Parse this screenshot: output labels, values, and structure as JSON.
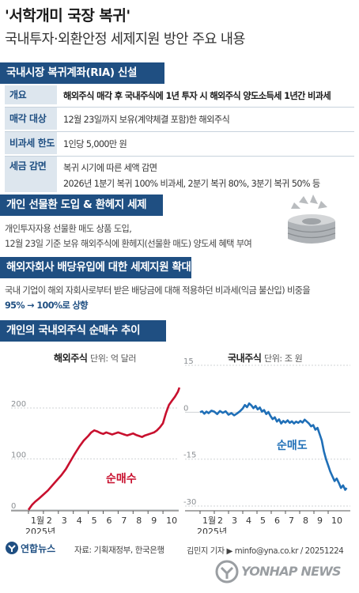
{
  "header": {
    "title": "'서학개미 국장 복귀'",
    "subtitle": "국내투자·외환안정 세제지원 방안 주요 내용"
  },
  "section1": {
    "heading": "국내시장 복귀계좌(RIA) 신설",
    "rows": [
      {
        "label": "개요",
        "lines": [
          "해외주식 매각 후 국내주식에 1년 투자 시 해외주식 양도소득세 1년간 비과세"
        ]
      },
      {
        "label": "매각 대상",
        "lines": [
          "12월 23일까지 보유(계약체결 포함)한 해외주식"
        ]
      },
      {
        "label": "비과세 한도",
        "lines": [
          "1인당 5,000만 원"
        ]
      },
      {
        "label": "세금 감면",
        "lines": [
          "복귀 시기에 따른 세액 감면",
          "2026년 1분기 복귀 100% 비과세, 2분기 복귀 80%, 3분기 복귀 50% 등"
        ]
      }
    ]
  },
  "section2": {
    "heading": "개인 선물환 도입 & 환헤지 세제",
    "lines": [
      "개인투자자용 선물환 매도 상품 도입,",
      "12월 23일 기준 보유 해외주식에 환헤지(선물환 매도) 양도세 혜택 부여"
    ]
  },
  "section3": {
    "heading": "해외자회사 배당유입에 대한 세제지원 확대",
    "line1": "국내 기업이 해외 자회사로부터 받은 배당금에 대해 적용하던 비과세(익금 불산입) 비중을",
    "line2": "95% → 100%로 상향"
  },
  "section4": {
    "heading": "개인의 국내외주식 순매수 추이"
  },
  "chart_data": [
    {
      "type": "line",
      "title": "해외주식",
      "unit": "단위: 억 달러",
      "annotation": "순매수",
      "year_label": "2025년",
      "x_ticks": [
        "1월",
        "2",
        "3",
        "4",
        "5",
        "6",
        "7",
        "8",
        "9",
        "10"
      ],
      "y_ticks": [
        0,
        100,
        200
      ],
      "ylim": [
        -5,
        290
      ],
      "color": "#c8102e",
      "series": [
        {
          "values": [
            [
              1.0,
              0
            ],
            [
              1.1,
              4
            ],
            [
              1.25,
              10
            ],
            [
              1.45,
              16
            ],
            [
              1.7,
              22
            ],
            [
              2.0,
              30
            ],
            [
              2.3,
              38
            ],
            [
              2.6,
              48
            ],
            [
              2.9,
              58
            ],
            [
              3.2,
              68
            ],
            [
              3.5,
              80
            ],
            [
              3.8,
              95
            ],
            [
              4.1,
              110
            ],
            [
              4.4,
              124
            ],
            [
              4.7,
              136
            ],
            [
              5.0,
              145
            ],
            [
              5.2,
              152
            ],
            [
              5.4,
              156
            ],
            [
              5.6,
              154
            ],
            [
              5.8,
              151
            ],
            [
              6.0,
              149
            ],
            [
              6.2,
              152
            ],
            [
              6.4,
              150
            ],
            [
              6.6,
              148
            ],
            [
              6.8,
              150
            ],
            [
              7.0,
              152
            ],
            [
              7.2,
              150
            ],
            [
              7.4,
              148
            ],
            [
              7.6,
              146
            ],
            [
              7.8,
              148
            ],
            [
              8.0,
              150
            ],
            [
              8.2,
              147
            ],
            [
              8.4,
              145
            ],
            [
              8.6,
              143
            ],
            [
              8.8,
              146
            ],
            [
              9.0,
              148
            ],
            [
              9.2,
              150
            ],
            [
              9.4,
              152
            ],
            [
              9.6,
              156
            ],
            [
              9.8,
              162
            ],
            [
              10.0,
              170
            ],
            [
              10.2,
              190
            ],
            [
              10.4,
              206
            ],
            [
              10.6,
              214
            ],
            [
              10.8,
              222
            ],
            [
              11.0,
              232
            ],
            [
              11.1,
              240
            ]
          ]
        }
      ]
    },
    {
      "type": "line",
      "title": "국내주식",
      "unit": "단위: 조 원",
      "annotation": "순매도",
      "year_label": "2025년",
      "x_ticks": [
        "1월",
        "2",
        "3",
        "4",
        "5",
        "6",
        "7",
        "8",
        "9",
        "10"
      ],
      "y_ticks": [
        15,
        0,
        -15,
        -30
      ],
      "ylim": [
        -31,
        15
      ],
      "color": "#1f6fb7",
      "series": [
        {
          "values": [
            [
              1.0,
              0
            ],
            [
              1.15,
              0.3
            ],
            [
              1.3,
              -0.5
            ],
            [
              1.45,
              0.2
            ],
            [
              1.6,
              -0.3
            ],
            [
              1.8,
              0.5
            ],
            [
              2.0,
              0.2
            ],
            [
              2.2,
              -0.6
            ],
            [
              2.4,
              0.4
            ],
            [
              2.6,
              -0.2
            ],
            [
              2.8,
              0.3
            ],
            [
              3.0,
              -0.8
            ],
            [
              3.2,
              -0.3
            ],
            [
              3.4,
              -1.0
            ],
            [
              3.6,
              -0.4
            ],
            [
              3.8,
              0.3
            ],
            [
              4.0,
              1.2
            ],
            [
              4.15,
              2.3
            ],
            [
              4.3,
              1.6
            ],
            [
              4.45,
              2.8
            ],
            [
              4.6,
              2.2
            ],
            [
              4.75,
              1.3
            ],
            [
              4.9,
              2.0
            ],
            [
              5.05,
              0.9
            ],
            [
              5.2,
              1.5
            ],
            [
              5.35,
              0.2
            ],
            [
              5.5,
              0.7
            ],
            [
              5.65,
              -0.6
            ],
            [
              5.8,
              0.1
            ],
            [
              5.95,
              -1.2
            ],
            [
              6.1,
              -2.2
            ],
            [
              6.25,
              -1.6
            ],
            [
              6.4,
              -3.0
            ],
            [
              6.55,
              -2.3
            ],
            [
              6.7,
              -3.6
            ],
            [
              6.85,
              -2.8
            ],
            [
              7.0,
              -3.3
            ],
            [
              7.15,
              -2.6
            ],
            [
              7.3,
              -3.4
            ],
            [
              7.45,
              -2.9
            ],
            [
              7.6,
              -3.6
            ],
            [
              7.75,
              -3.0
            ],
            [
              7.9,
              -3.4
            ],
            [
              8.05,
              -2.8
            ],
            [
              8.2,
              -3.3
            ],
            [
              8.35,
              -2.4
            ],
            [
              8.5,
              -3.0
            ],
            [
              8.65,
              -3.6
            ],
            [
              8.8,
              -4.5
            ],
            [
              8.95,
              -4.1
            ],
            [
              9.1,
              -5.6
            ],
            [
              9.25,
              -5.0
            ],
            [
              9.4,
              -7.0
            ],
            [
              9.55,
              -9.0
            ],
            [
              9.7,
              -12.5
            ],
            [
              9.85,
              -15.0
            ],
            [
              10.0,
              -17.0
            ],
            [
              10.15,
              -19.0
            ],
            [
              10.3,
              -20.5
            ],
            [
              10.45,
              -22.0
            ],
            [
              10.6,
              -21.2
            ],
            [
              10.75,
              -22.6
            ],
            [
              10.9,
              -24.2
            ],
            [
              11.05,
              -23.4
            ],
            [
              11.2,
              -24.8
            ],
            [
              11.3,
              -24.2
            ]
          ]
        }
      ]
    }
  ],
  "footer": {
    "logo_text": "연합뉴스",
    "source": "자료: 기획재정부, 한국은행",
    "credit": "김민지 기자 ▶ minfo@yna.co.kr / 20251224",
    "watermark": "YONHAP NEWS"
  }
}
